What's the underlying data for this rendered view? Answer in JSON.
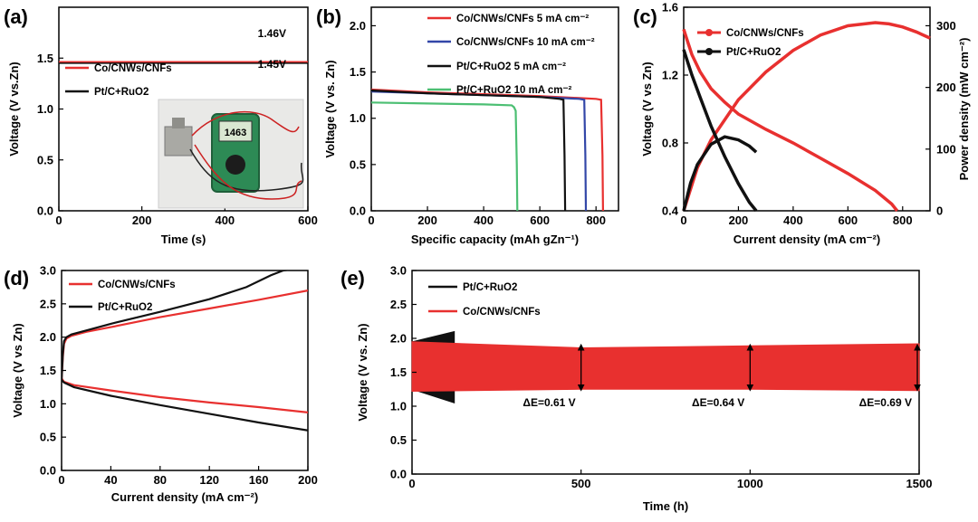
{
  "colors": {
    "red": "#e8302f",
    "black": "#111111",
    "blue": "#3347a8",
    "green": "#4cbf73"
  },
  "icons": {
    "photo": "multimeter-photo-icon"
  },
  "chart_data": [
    {
      "panel": "(a)",
      "type": "line",
      "xlabel": "Time (s)",
      "ylabel": "Voltage (V vs.Zn)",
      "xlim": [
        0,
        600
      ],
      "ylim": [
        0.0,
        2.0
      ],
      "xticks": [
        "0",
        "200",
        "400",
        "600"
      ],
      "yticks": [
        "0.0",
        "0.5",
        "1.0",
        "1.5"
      ],
      "series": [
        {
          "name": "Co/CNWs/CNFs",
          "color": "#e8302f",
          "x": [
            0,
            600
          ],
          "y": [
            1.46,
            1.46
          ]
        },
        {
          "name": "Pt/C+RuO2",
          "color": "#111111",
          "x": [
            0,
            600
          ],
          "y": [
            1.45,
            1.45
          ]
        }
      ],
      "annotations": [
        "1.46V",
        "1.45V"
      ],
      "legend": "left",
      "inset": "multimeter-photo",
      "inset_reading": "1463"
    },
    {
      "panel": "(b)",
      "type": "line",
      "xlabel": "Specific capacity (mAh gZn⁻¹)",
      "ylabel": "Voltage (V vs. Zn)",
      "xlim": [
        0,
        880
      ],
      "ylim": [
        0.0,
        2.2
      ],
      "xticks": [
        "0",
        "200",
        "400",
        "600",
        "800"
      ],
      "yticks": [
        "0.0",
        "0.5",
        "1.0",
        "1.5",
        "2.0"
      ],
      "series": [
        {
          "name": "Co/CNWs/CNFs 5 mA cm⁻²",
          "color": "#e8302f",
          "x": [
            0,
            200,
            400,
            600,
            800,
            818,
            823,
            825
          ],
          "y": [
            1.31,
            1.28,
            1.26,
            1.24,
            1.21,
            1.2,
            0.6,
            0.0
          ]
        },
        {
          "name": "Co/CNWs/CNFs 10 mA cm⁻²",
          "color": "#3347a8",
          "x": [
            0,
            200,
            400,
            600,
            740,
            758,
            762,
            764
          ],
          "y": [
            1.29,
            1.27,
            1.25,
            1.23,
            1.21,
            1.2,
            0.6,
            0.0
          ]
        },
        {
          "name": "Pt/C+RuO2 5 mA cm⁻²",
          "color": "#111111",
          "x": [
            0,
            200,
            400,
            600,
            670,
            684,
            688,
            690
          ],
          "y": [
            1.3,
            1.27,
            1.25,
            1.23,
            1.21,
            1.2,
            0.6,
            0.0
          ]
        },
        {
          "name": "Pt/C+RuO2 10 mA cm⁻²",
          "color": "#4cbf73",
          "x": [
            0,
            200,
            400,
            500,
            508,
            514,
            518,
            520
          ],
          "y": [
            1.17,
            1.16,
            1.15,
            1.14,
            1.12,
            1.08,
            0.5,
            0.0
          ]
        }
      ],
      "legend": "top-right"
    },
    {
      "panel": "(c)",
      "type": "line",
      "xlabel": "Current density (mA cm⁻²)",
      "ylabel": "Voltage (V vs Zn)",
      "ylabel_right": "Power density (mW cm⁻²)",
      "xlim": [
        0,
        900
      ],
      "ylim": [
        0.4,
        1.6
      ],
      "ylim_right": [
        0,
        330
      ],
      "xticks": [
        "0",
        "200",
        "400",
        "600",
        "800"
      ],
      "yticks": [
        "0.4",
        "0.8",
        "1.2",
        "1.6"
      ],
      "yticks_right": [
        "0",
        "100",
        "200",
        "300"
      ],
      "series": [
        {
          "name": "Co/CNWs/CNFs",
          "color": "#e8302f",
          "axis": "left",
          "x": [
            0,
            10,
            30,
            60,
            100,
            150,
            200,
            300,
            400,
            500,
            600,
            700,
            760,
            780
          ],
          "y": [
            1.47,
            1.42,
            1.32,
            1.22,
            1.12,
            1.04,
            0.97,
            0.88,
            0.8,
            0.71,
            0.62,
            0.52,
            0.44,
            0.4
          ]
        },
        {
          "name": "Co/CNWs/CNFs",
          "color": "#e8302f",
          "axis": "right",
          "x": [
            0,
            50,
            100,
            200,
            300,
            400,
            500,
            600,
            700,
            750,
            800,
            850,
            900
          ],
          "y": [
            0,
            70,
            115,
            180,
            225,
            260,
            285,
            300,
            305,
            303,
            298,
            290,
            280
          ]
        },
        {
          "name": "Pt/C+RuO2",
          "color": "#111111",
          "axis": "left",
          "x": [
            0,
            10,
            30,
            60,
            100,
            150,
            200,
            240,
            265
          ],
          "y": [
            1.35,
            1.3,
            1.2,
            1.07,
            0.9,
            0.72,
            0.56,
            0.45,
            0.4
          ]
        },
        {
          "name": "Pt/C+RuO2",
          "color": "#111111",
          "axis": "right",
          "x": [
            0,
            25,
            50,
            100,
            150,
            200,
            240,
            265
          ],
          "y": [
            0,
            45,
            75,
            108,
            120,
            115,
            105,
            95
          ]
        }
      ],
      "legend": "top-left"
    },
    {
      "panel": "(d)",
      "type": "line",
      "xlabel": "Current density (mA cm⁻²)",
      "ylabel": "Voltage (V vs Zn)",
      "xlim": [
        0,
        200
      ],
      "ylim": [
        0.0,
        3.0
      ],
      "xticks": [
        "0",
        "40",
        "80",
        "120",
        "160",
        "200"
      ],
      "yticks": [
        "0.0",
        "0.5",
        "1.0",
        "1.5",
        "2.0",
        "2.5",
        "3.0"
      ],
      "series": [
        {
          "name": "Co/CNWs/CNFs",
          "color": "#e8302f",
          "branch": "charge",
          "x": [
            0,
            1,
            2,
            4,
            8,
            20,
            40,
            80,
            120,
            160,
            200
          ],
          "y": [
            1.35,
            1.7,
            1.9,
            1.98,
            2.02,
            2.08,
            2.15,
            2.3,
            2.43,
            2.56,
            2.7
          ]
        },
        {
          "name": "Co/CNWs/CNFs",
          "color": "#e8302f",
          "branch": "discharge",
          "x": [
            0,
            2,
            10,
            40,
            80,
            120,
            160,
            200
          ],
          "y": [
            1.38,
            1.33,
            1.28,
            1.2,
            1.1,
            1.02,
            0.95,
            0.87
          ]
        },
        {
          "name": "Pt/C+RuO2",
          "color": "#111111",
          "branch": "charge",
          "x": [
            0,
            1,
            2,
            4,
            8,
            20,
            40,
            80,
            120,
            150,
            170,
            180,
            200
          ],
          "y": [
            1.35,
            1.75,
            1.94,
            2.0,
            2.04,
            2.1,
            2.2,
            2.38,
            2.57,
            2.75,
            2.93,
            3.0,
            3.05
          ]
        },
        {
          "name": "Pt/C+RuO2",
          "color": "#111111",
          "branch": "discharge",
          "x": [
            0,
            2,
            10,
            40,
            80,
            120,
            160,
            200
          ],
          "y": [
            1.36,
            1.32,
            1.25,
            1.12,
            0.98,
            0.85,
            0.72,
            0.6
          ]
        }
      ],
      "legend": "top-left"
    },
    {
      "panel": "(e)",
      "type": "line",
      "xlabel": "Time (h)",
      "ylabel": "Voltage (V vs. Zn)",
      "xlim": [
        0,
        1500
      ],
      "ylim": [
        0.0,
        3.0
      ],
      "xticks": [
        "0",
        "500",
        "1000",
        "1500"
      ],
      "yticks": [
        "0.0",
        "0.5",
        "1.0",
        "1.5",
        "2.0",
        "2.5",
        "3.0"
      ],
      "series": [
        {
          "name": "Pt/C+RuO2",
          "color": "#111111",
          "x": [
            0,
            125
          ],
          "y_charge": [
            1.95,
            2.1
          ],
          "y_discharge": [
            1.25,
            1.05
          ]
        },
        {
          "name": "Co/CNWs/CNFs",
          "color": "#e8302f",
          "x": [
            0,
            500,
            1000,
            1500
          ],
          "y_charge": [
            1.95,
            1.86,
            1.89,
            1.92
          ],
          "y_discharge": [
            1.22,
            1.25,
            1.25,
            1.23
          ]
        }
      ],
      "annotations": [
        {
          "x": 500,
          "label": "ΔE=0.61 V"
        },
        {
          "x": 1000,
          "label": "ΔE=0.64 V"
        },
        {
          "x": 1500,
          "label": "ΔE=0.69 V"
        }
      ],
      "legend": "top-left"
    }
  ]
}
